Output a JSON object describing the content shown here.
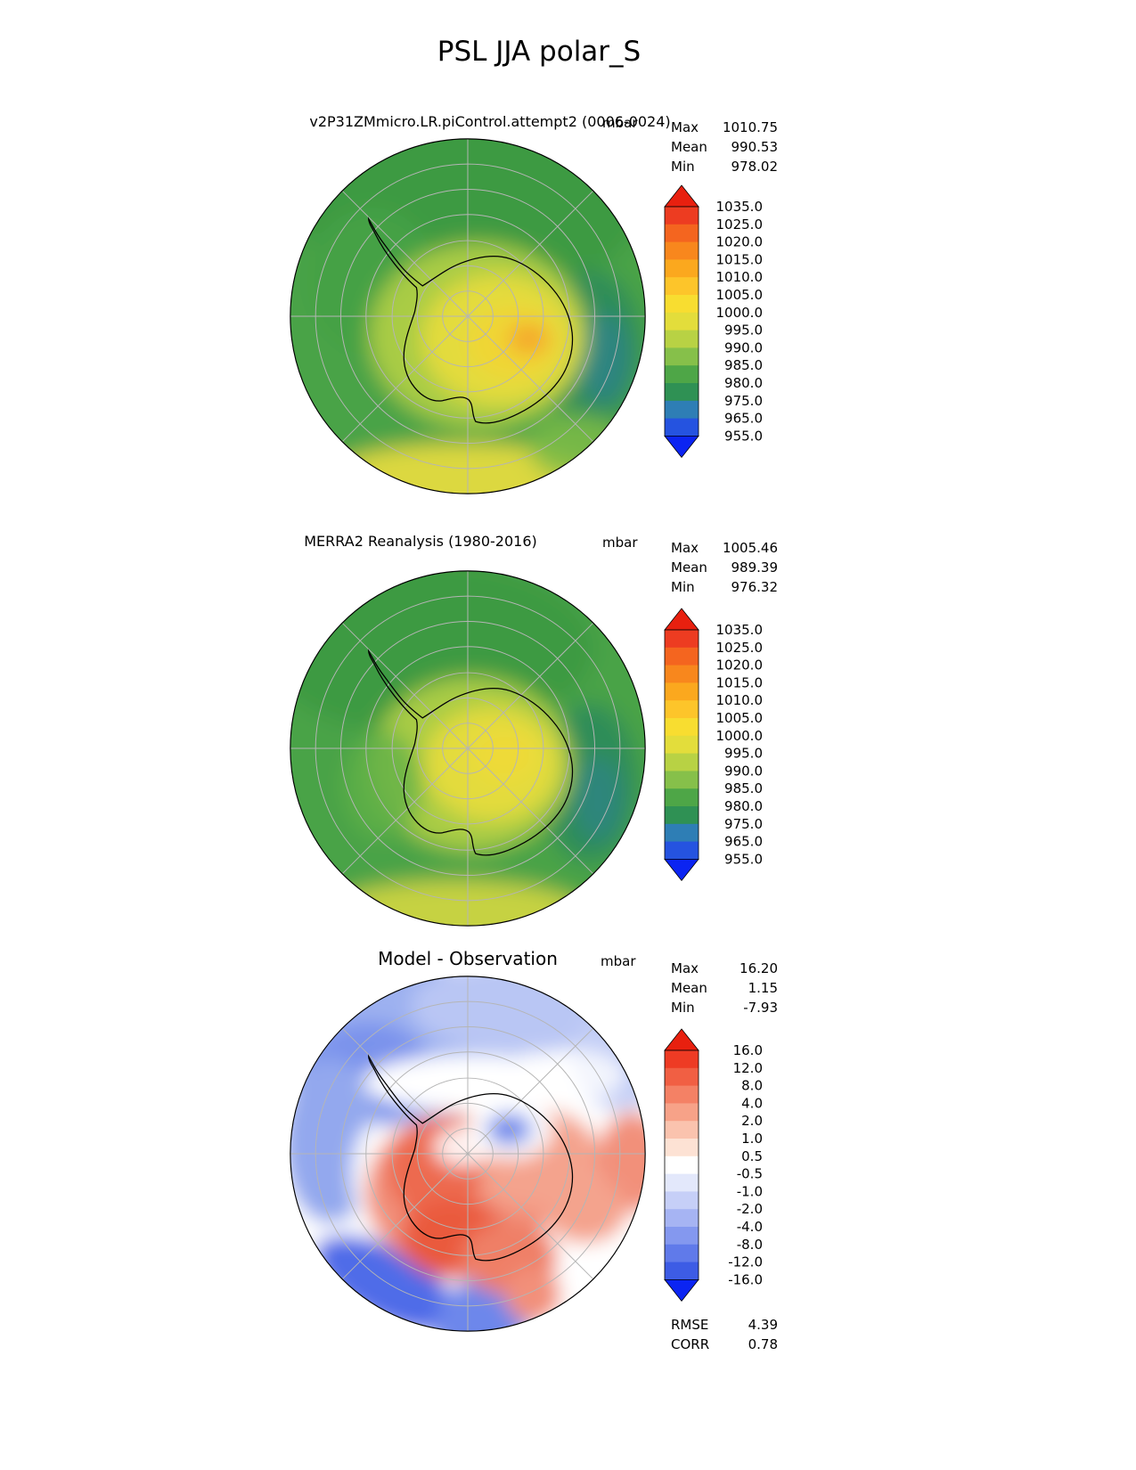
{
  "page_title": "PSL JJA polar_S",
  "panels": {
    "model": {
      "title": "v2P31ZMmicro.LR.piControl.attempt2 (0006-0024)",
      "units": "mbar",
      "stats": {
        "max_label": "Max",
        "max_value": "1010.75",
        "mean_label": "Mean",
        "mean_value": "990.53",
        "min_label": "Min",
        "min_value": "978.02"
      },
      "colorbar": {
        "tick_labels": [
          "1035.0",
          "1025.0",
          "1020.0",
          "1015.0",
          "1010.0",
          "1005.0",
          "1000.0",
          "995.0",
          "990.0",
          "985.0",
          "980.0",
          "975.0",
          "965.0",
          "955.0"
        ],
        "segment_colors": [
          "#ed3c21",
          "#f4651f",
          "#f8871d",
          "#fba81e",
          "#fdc52a",
          "#f8dd30",
          "#e3dd3b",
          "#b8d244",
          "#86c04a",
          "#4ea647",
          "#2f9154",
          "#2e7eb5",
          "#2553e0"
        ],
        "over_color": "#e8200f",
        "under_color": "#0b24f2"
      }
    },
    "obs": {
      "title": "MERRA2 Reanalysis (1980-2016)",
      "units": "mbar",
      "stats": {
        "max_label": "Max",
        "max_value": "1005.46",
        "mean_label": "Mean",
        "mean_value": "989.39",
        "min_label": "Min",
        "min_value": "976.32"
      },
      "colorbar": {
        "tick_labels": [
          "1035.0",
          "1025.0",
          "1020.0",
          "1015.0",
          "1010.0",
          "1005.0",
          "1000.0",
          "995.0",
          "990.0",
          "985.0",
          "980.0",
          "975.0",
          "965.0",
          "955.0"
        ],
        "segment_colors": [
          "#ed3c21",
          "#f4651f",
          "#f8871d",
          "#fba81e",
          "#fdc52a",
          "#f8dd30",
          "#e3dd3b",
          "#b8d244",
          "#86c04a",
          "#4ea647",
          "#2f9154",
          "#2e7eb5",
          "#2553e0"
        ],
        "over_color": "#e8200f",
        "under_color": "#0b24f2"
      }
    },
    "diff": {
      "title": "Model - Observation",
      "units": "mbar",
      "stats": {
        "max_label": "Max",
        "max_value": "16.20",
        "mean_label": "Mean",
        "mean_value": "1.15",
        "min_label": "Min",
        "min_value": "-7.93"
      },
      "colorbar": {
        "tick_labels": [
          "16.0",
          "12.0",
          "8.0",
          "4.0",
          "2.0",
          "1.0",
          "0.5",
          "-0.5",
          "-1.0",
          "-2.0",
          "-4.0",
          "-8.0",
          "-12.0",
          "-16.0"
        ],
        "segment_colors": [
          "#ee3b24",
          "#f15f43",
          "#f48165",
          "#f7a288",
          "#fac3ae",
          "#fde2d4",
          "#ffffff",
          "#e3e8fb",
          "#c6cff7",
          "#a6b4f3",
          "#8498ef",
          "#607aea",
          "#3d5ce5"
        ],
        "over_color": "#e8200f",
        "under_color": "#0b24f2"
      },
      "footer": {
        "rmse_label": "RMSE",
        "rmse_value": "4.39",
        "corr_label": "CORR",
        "corr_value": "0.78"
      }
    }
  },
  "chart_data": [
    {
      "type": "heatmap",
      "subtype": "filled-contour-polar-map",
      "projection": "south-polar-stereographic",
      "variable": "PSL",
      "season": "JJA",
      "title": "v2P31ZMmicro.LR.piControl.attempt2 (0006-0024)",
      "units": "mbar",
      "contour_levels": [
        955.0,
        965.0,
        975.0,
        980.0,
        985.0,
        990.0,
        995.0,
        1000.0,
        1005.0,
        1010.0,
        1015.0,
        1020.0,
        1025.0,
        1035.0
      ],
      "colorbar_extend": "both",
      "legend_position": "right",
      "stats": {
        "max": 1010.75,
        "mean": 990.53,
        "min": 978.02
      }
    },
    {
      "type": "heatmap",
      "subtype": "filled-contour-polar-map",
      "projection": "south-polar-stereographic",
      "variable": "PSL",
      "season": "JJA",
      "title": "MERRA2 Reanalysis (1980-2016)",
      "units": "mbar",
      "contour_levels": [
        955.0,
        965.0,
        975.0,
        980.0,
        985.0,
        990.0,
        995.0,
        1000.0,
        1005.0,
        1010.0,
        1015.0,
        1020.0,
        1025.0,
        1035.0
      ],
      "colorbar_extend": "both",
      "legend_position": "right",
      "stats": {
        "max": 1005.46,
        "mean": 989.39,
        "min": 976.32
      }
    },
    {
      "type": "heatmap",
      "subtype": "filled-contour-polar-map-difference",
      "projection": "south-polar-stereographic",
      "variable": "PSL",
      "season": "JJA",
      "title": "Model - Observation",
      "units": "mbar",
      "contour_levels": [
        -16.0,
        -12.0,
        -8.0,
        -4.0,
        -2.0,
        -1.0,
        -0.5,
        0.5,
        1.0,
        2.0,
        4.0,
        8.0,
        12.0,
        16.0
      ],
      "colorbar_extend": "both",
      "legend_position": "right",
      "stats": {
        "max": 16.2,
        "mean": 1.15,
        "min": -7.93,
        "rmse": 4.39,
        "corr": 0.78
      }
    }
  ]
}
